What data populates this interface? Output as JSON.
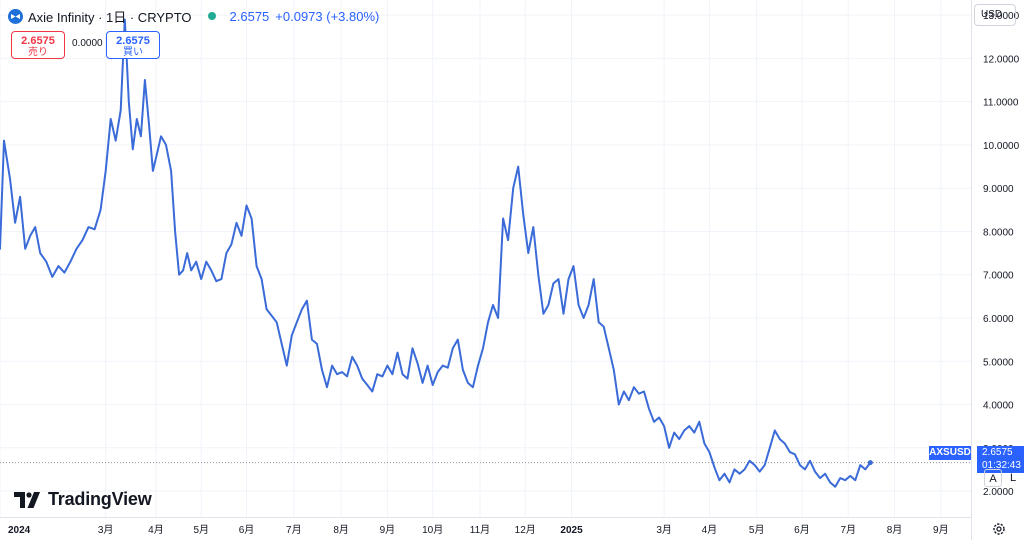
{
  "header": {
    "title": "Axie Infinity · 1日 · CRYPTO",
    "last_price": "2.6575",
    "change": "+0.0973 (+3.80%)"
  },
  "trade": {
    "sell_price": "2.6575",
    "sell_label": "売り",
    "spread": "0.0000",
    "buy_price": "2.6575",
    "buy_label": "買い"
  },
  "currency": "USD",
  "logo_text": "TradingView",
  "price_marker": {
    "symbol": "AXSUSD",
    "price": "2.6575",
    "countdown": "01:32:43"
  },
  "axis_buttons": {
    "auto": "A",
    "log": "L"
  },
  "colors": {
    "line": "#3a6bd8",
    "accent": "#2962ff",
    "sell": "#f23645",
    "grid": "#f0f3fa",
    "status": "#22ab94"
  },
  "chart_data": {
    "type": "line",
    "series": [
      {
        "values": [
          [
            0,
            7.6
          ],
          [
            0.4,
            10.1
          ],
          [
            1,
            9.2
          ],
          [
            1.5,
            8.2
          ],
          [
            2,
            8.8
          ],
          [
            2.5,
            7.6
          ],
          [
            3,
            7.9
          ],
          [
            3.5,
            8.1
          ],
          [
            4,
            7.5
          ],
          [
            4.6,
            7.3
          ],
          [
            5.2,
            6.95
          ],
          [
            5.8,
            7.2
          ],
          [
            6.4,
            7.05
          ],
          [
            7,
            7.3
          ],
          [
            7.6,
            7.6
          ],
          [
            8.2,
            7.8
          ],
          [
            8.8,
            8.1
          ],
          [
            9.4,
            8.05
          ],
          [
            10,
            8.5
          ],
          [
            10.5,
            9.4
          ],
          [
            11,
            10.6
          ],
          [
            11.5,
            10.1
          ],
          [
            12,
            10.8
          ],
          [
            12.4,
            12.9
          ],
          [
            12.8,
            11.0
          ],
          [
            13.2,
            9.9
          ],
          [
            13.6,
            10.6
          ],
          [
            14,
            10.2
          ],
          [
            14.4,
            11.5
          ],
          [
            14.8,
            10.5
          ],
          [
            15.2,
            9.4
          ],
          [
            15.6,
            9.8
          ],
          [
            16,
            10.2
          ],
          [
            16.5,
            10.0
          ],
          [
            17,
            9.4
          ],
          [
            17.4,
            8.0
          ],
          [
            17.8,
            7.0
          ],
          [
            18.2,
            7.1
          ],
          [
            18.6,
            7.5
          ],
          [
            19,
            7.1
          ],
          [
            19.5,
            7.3
          ],
          [
            20,
            6.9
          ],
          [
            20.5,
            7.3
          ],
          [
            21,
            7.1
          ],
          [
            21.5,
            6.85
          ],
          [
            22,
            6.9
          ],
          [
            22.5,
            7.5
          ],
          [
            23,
            7.7
          ],
          [
            23.5,
            8.2
          ],
          [
            24,
            7.9
          ],
          [
            24.5,
            8.6
          ],
          [
            25,
            8.3
          ],
          [
            25.5,
            7.2
          ],
          [
            26,
            6.9
          ],
          [
            26.5,
            6.2
          ],
          [
            27,
            6.05
          ],
          [
            27.5,
            5.9
          ],
          [
            28,
            5.4
          ],
          [
            28.5,
            4.9
          ],
          [
            29,
            5.6
          ],
          [
            29.5,
            5.9
          ],
          [
            30,
            6.2
          ],
          [
            30.5,
            6.4
          ],
          [
            31,
            5.5
          ],
          [
            31.5,
            5.4
          ],
          [
            32,
            4.8
          ],
          [
            32.5,
            4.4
          ],
          [
            33,
            4.9
          ],
          [
            33.5,
            4.7
          ],
          [
            34,
            4.75
          ],
          [
            34.5,
            4.65
          ],
          [
            35,
            5.1
          ],
          [
            35.5,
            4.9
          ],
          [
            36,
            4.6
          ],
          [
            36.5,
            4.45
          ],
          [
            37,
            4.3
          ],
          [
            37.5,
            4.7
          ],
          [
            38,
            4.65
          ],
          [
            38.5,
            4.9
          ],
          [
            39,
            4.7
          ],
          [
            39.5,
            5.2
          ],
          [
            40,
            4.7
          ],
          [
            40.5,
            4.6
          ],
          [
            41,
            5.3
          ],
          [
            41.5,
            4.95
          ],
          [
            42,
            4.5
          ],
          [
            42.5,
            4.9
          ],
          [
            43,
            4.45
          ],
          [
            43.5,
            4.75
          ],
          [
            44,
            4.9
          ],
          [
            44.5,
            4.85
          ],
          [
            45,
            5.3
          ],
          [
            45.5,
            5.5
          ],
          [
            46,
            4.8
          ],
          [
            46.5,
            4.5
          ],
          [
            47,
            4.4
          ],
          [
            47.5,
            4.9
          ],
          [
            48,
            5.3
          ],
          [
            48.5,
            5.9
          ],
          [
            49,
            6.3
          ],
          [
            49.5,
            6.0
          ],
          [
            50,
            8.3
          ],
          [
            50.5,
            7.8
          ],
          [
            51,
            9.0
          ],
          [
            51.5,
            9.5
          ],
          [
            52,
            8.4
          ],
          [
            52.5,
            7.5
          ],
          [
            53,
            8.1
          ],
          [
            53.5,
            7.0
          ],
          [
            54,
            6.1
          ],
          [
            54.5,
            6.3
          ],
          [
            55,
            6.8
          ],
          [
            55.5,
            6.9
          ],
          [
            56,
            6.1
          ],
          [
            56.5,
            6.9
          ],
          [
            57,
            7.2
          ],
          [
            57.5,
            6.3
          ],
          [
            58,
            6.0
          ],
          [
            58.5,
            6.3
          ],
          [
            59,
            6.9
          ],
          [
            59.5,
            5.9
          ],
          [
            60,
            5.8
          ],
          [
            60.5,
            5.3
          ],
          [
            61,
            4.8
          ],
          [
            61.5,
            4.0
          ],
          [
            62,
            4.3
          ],
          [
            62.5,
            4.1
          ],
          [
            63,
            4.4
          ],
          [
            63.5,
            4.25
          ],
          [
            64,
            4.3
          ],
          [
            64.5,
            3.9
          ],
          [
            65,
            3.6
          ],
          [
            65.5,
            3.7
          ],
          [
            66,
            3.5
          ],
          [
            66.5,
            3.0
          ],
          [
            67,
            3.35
          ],
          [
            67.5,
            3.2
          ],
          [
            68,
            3.4
          ],
          [
            68.5,
            3.5
          ],
          [
            69,
            3.35
          ],
          [
            69.5,
            3.6
          ],
          [
            70,
            3.1
          ],
          [
            70.5,
            2.9
          ],
          [
            71,
            2.55
          ],
          [
            71.5,
            2.25
          ],
          [
            72,
            2.4
          ],
          [
            72.5,
            2.2
          ],
          [
            73,
            2.5
          ],
          [
            73.5,
            2.4
          ],
          [
            74,
            2.5
          ],
          [
            74.5,
            2.7
          ],
          [
            75,
            2.6
          ],
          [
            75.5,
            2.45
          ],
          [
            76,
            2.6
          ],
          [
            76.5,
            3.0
          ],
          [
            77,
            3.4
          ],
          [
            77.5,
            3.2
          ],
          [
            78,
            3.1
          ],
          [
            78.5,
            2.9
          ],
          [
            79,
            2.85
          ],
          [
            79.5,
            2.6
          ],
          [
            80,
            2.5
          ],
          [
            80.5,
            2.7
          ],
          [
            81,
            2.45
          ],
          [
            81.5,
            2.3
          ],
          [
            82,
            2.4
          ],
          [
            82.5,
            2.2
          ],
          [
            83,
            2.1
          ],
          [
            83.5,
            2.3
          ],
          [
            84,
            2.25
          ],
          [
            84.5,
            2.35
          ],
          [
            85,
            2.25
          ],
          [
            85.5,
            2.6
          ],
          [
            86,
            2.5
          ],
          [
            86.5,
            2.6575
          ]
        ]
      }
    ],
    "x_ticks": [
      {
        "x": 0,
        "label": "2024"
      },
      {
        "x": 10.5,
        "label": "3月"
      },
      {
        "x": 15.5,
        "label": "4月"
      },
      {
        "x": 20,
        "label": "5月"
      },
      {
        "x": 24.5,
        "label": "6月"
      },
      {
        "x": 29.2,
        "label": "7月"
      },
      {
        "x": 33.9,
        "label": "8月"
      },
      {
        "x": 38.5,
        "label": "9月"
      },
      {
        "x": 43,
        "label": "10月"
      },
      {
        "x": 47.7,
        "label": "11月"
      },
      {
        "x": 52.2,
        "label": "12月"
      },
      {
        "x": 56.8,
        "label": "2025"
      },
      {
        "x": 66,
        "label": "3月"
      },
      {
        "x": 70.5,
        "label": "4月"
      },
      {
        "x": 75.2,
        "label": "5月"
      },
      {
        "x": 79.7,
        "label": "6月"
      },
      {
        "x": 84.3,
        "label": "7月"
      },
      {
        "x": 88.9,
        "label": "8月"
      },
      {
        "x": 93.5,
        "label": "9月"
      }
    ],
    "y_ticks": [
      "13.0000",
      "12.0000",
      "11.0000",
      "10.0000",
      "9.0000",
      "8.0000",
      "7.0000",
      "6.0000",
      "5.0000",
      "4.0000",
      "3.0000",
      "2.0000"
    ],
    "ylim": [
      1.4,
      13.35
    ],
    "xlim": [
      0,
      96.5
    ],
    "last_value": 2.6575,
    "grid": true,
    "legend": "none"
  }
}
